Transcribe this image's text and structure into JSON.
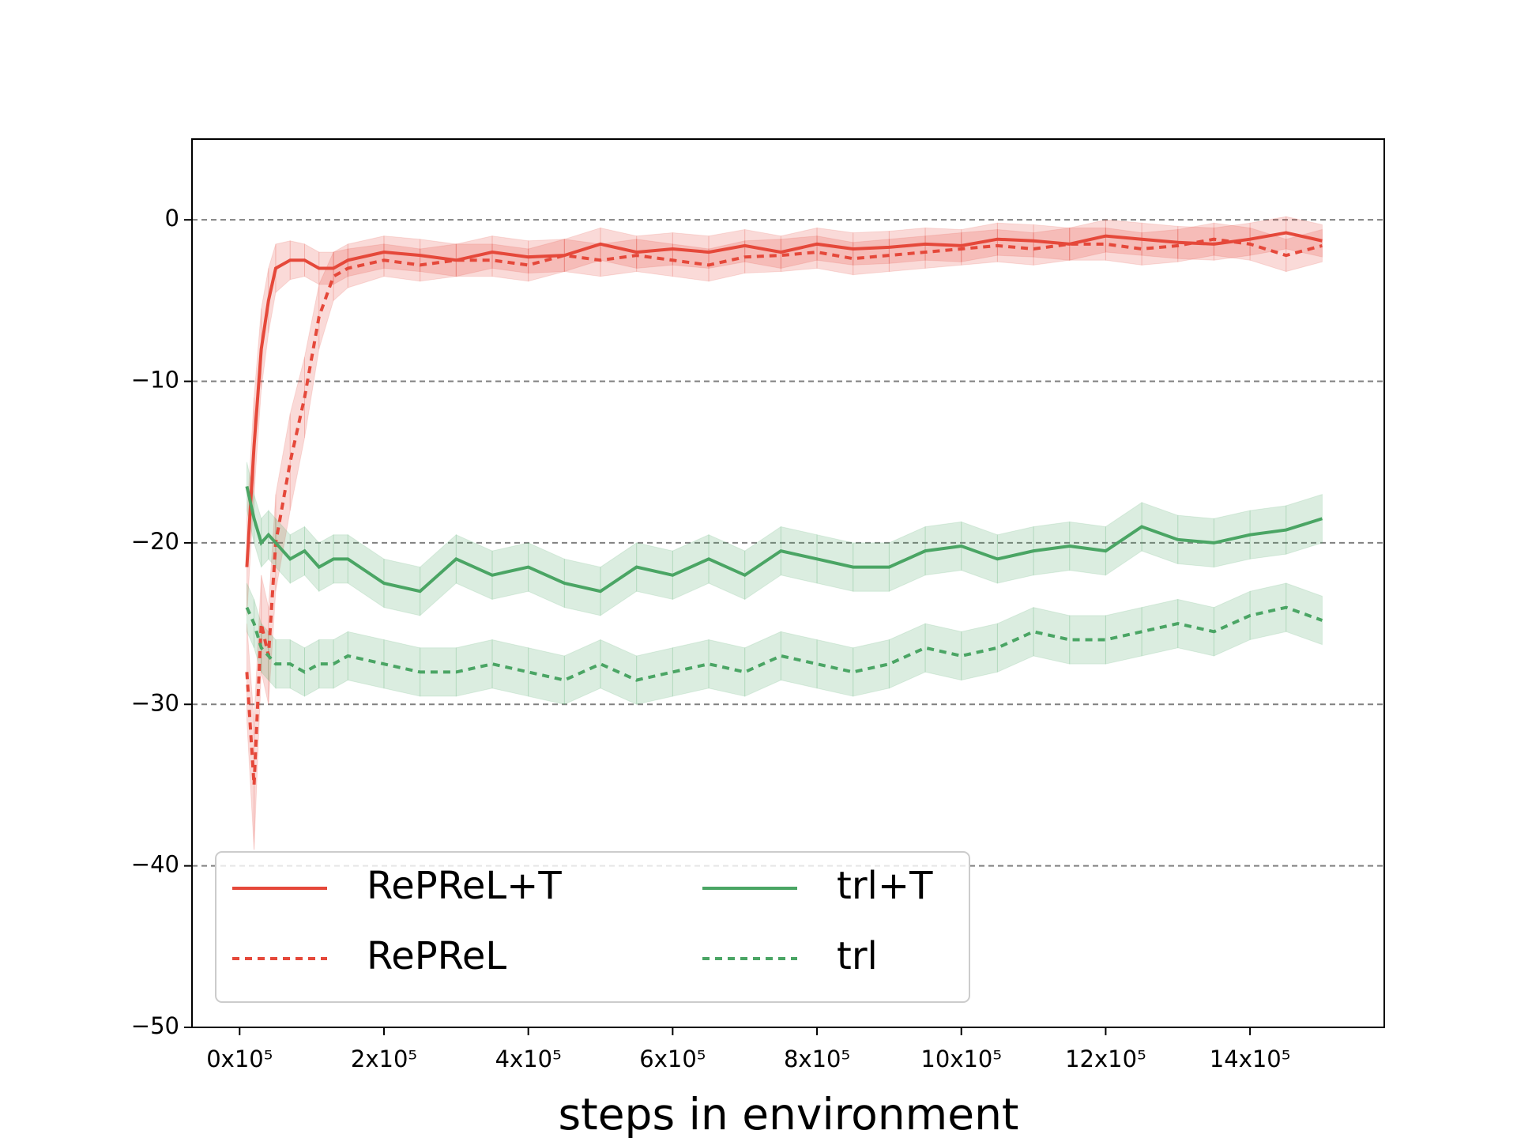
{
  "chart_data": {
    "type": "line",
    "x_label": "steps in environment",
    "x": [
      10000,
      20000,
      30000,
      40000,
      50000,
      70000,
      90000,
      110000,
      130000,
      150000,
      200000,
      250000,
      300000,
      350000,
      400000,
      450000,
      500000,
      550000,
      600000,
      650000,
      700000,
      750000,
      800000,
      850000,
      900000,
      950000,
      1000000,
      1050000,
      1100000,
      1150000,
      1200000,
      1250000,
      1300000,
      1350000,
      1400000,
      1450000,
      1500000
    ],
    "series": [
      {
        "name": "RePReL+T",
        "color": "#e5483a",
        "linestyle": "solid",
        "values": [
          -21.5,
          -14,
          -8,
          -5,
          -3,
          -2.5,
          -2.5,
          -3,
          -3,
          -2.5,
          -2,
          -2.2,
          -2.5,
          -2,
          -2.3,
          -2.2,
          -1.5,
          -2,
          -1.8,
          -2,
          -1.6,
          -2,
          -1.5,
          -1.8,
          -1.7,
          -1.5,
          -1.6,
          -1.2,
          -1.3,
          -1.5,
          -1,
          -1.2,
          -1.4,
          -1.5,
          -1.2,
          -0.8,
          -1.3
        ],
        "error": [
          3,
          3,
          2.5,
          2,
          1.5,
          1.2,
          1,
          1,
          1,
          1,
          1,
          1,
          1,
          1,
          1,
          1,
          1,
          1,
          1,
          1,
          1,
          1,
          1,
          1,
          1,
          1,
          1,
          1,
          1,
          1,
          1,
          1,
          1,
          1,
          1,
          1,
          1
        ]
      },
      {
        "name": "RePReL",
        "color": "#e5483a",
        "linestyle": "dotted",
        "values": [
          -28,
          -35,
          -25,
          -27,
          -20,
          -15,
          -11,
          -6,
          -3.5,
          -3,
          -2.5,
          -2.8,
          -2.5,
          -2.5,
          -2.8,
          -2.2,
          -2.5,
          -2.2,
          -2.5,
          -2.8,
          -2.3,
          -2.2,
          -2,
          -2.4,
          -2.2,
          -2,
          -1.8,
          -1.6,
          -1.8,
          -1.5,
          -1.5,
          -1.8,
          -1.6,
          -1.2,
          -1.5,
          -2.2,
          -1.6
        ],
        "error": [
          3,
          4,
          3,
          3,
          3,
          3,
          2.5,
          2,
          1.5,
          1.2,
          1,
          1,
          1,
          1,
          1,
          1,
          1,
          1,
          1,
          1,
          1,
          1,
          1,
          1,
          1,
          1,
          1,
          1,
          1,
          1,
          1,
          1,
          1,
          1,
          1,
          1,
          1
        ]
      },
      {
        "name": "trl+T",
        "color": "#4aa564",
        "linestyle": "solid",
        "values": [
          -16.5,
          -18.5,
          -20,
          -19.5,
          -20,
          -21,
          -20.5,
          -21.5,
          -21,
          -21,
          -22.5,
          -23,
          -21,
          -22,
          -21.5,
          -22.5,
          -23,
          -21.5,
          -22,
          -21,
          -22,
          -20.5,
          -21,
          -21.5,
          -21.5,
          -20.5,
          -20.2,
          -21,
          -20.5,
          -20.2,
          -20.5,
          -19,
          -19.8,
          -20,
          -19.5,
          -19.2,
          -18.5
        ],
        "error": [
          1.5,
          1.5,
          1.5,
          1.5,
          1.5,
          1.5,
          1.5,
          1.5,
          1.5,
          1.5,
          1.5,
          1.5,
          1.5,
          1.5,
          1.5,
          1.5,
          1.5,
          1.5,
          1.5,
          1.5,
          1.5,
          1.5,
          1.5,
          1.5,
          1.5,
          1.5,
          1.5,
          1.5,
          1.5,
          1.5,
          1.5,
          1.5,
          1.5,
          1.5,
          1.5,
          1.5,
          1.5
        ]
      },
      {
        "name": "trl",
        "color": "#4aa564",
        "linestyle": "dotted",
        "values": [
          -24,
          -25,
          -26.5,
          -27,
          -27.5,
          -27.5,
          -28,
          -27.5,
          -27.5,
          -27,
          -27.5,
          -28,
          -28,
          -27.5,
          -28,
          -28.5,
          -27.5,
          -28.5,
          -28,
          -27.5,
          -28,
          -27,
          -27.5,
          -28,
          -27.5,
          -26.5,
          -27,
          -26.5,
          -25.5,
          -26,
          -26,
          -25.5,
          -25,
          -25.5,
          -24.5,
          -24,
          -24.8
        ],
        "error": [
          1.5,
          1.5,
          1.5,
          1.5,
          1.5,
          1.5,
          1.5,
          1.5,
          1.5,
          1.5,
          1.5,
          1.5,
          1.5,
          1.5,
          1.5,
          1.5,
          1.5,
          1.5,
          1.5,
          1.5,
          1.5,
          1.5,
          1.5,
          1.5,
          1.5,
          1.5,
          1.5,
          1.5,
          1.5,
          1.5,
          1.5,
          1.5,
          1.5,
          1.5,
          1.5,
          1.5,
          1.5
        ]
      }
    ],
    "xlim": [
      -66000,
      1586000
    ],
    "ylim": [
      -50,
      5
    ],
    "xticks": [
      {
        "value": 0,
        "label": "0x10⁵"
      },
      {
        "value": 200000,
        "label": "2x10⁵"
      },
      {
        "value": 400000,
        "label": "4x10⁵"
      },
      {
        "value": 600000,
        "label": "6x10⁵"
      },
      {
        "value": 800000,
        "label": "8x10⁵"
      },
      {
        "value": 1000000,
        "label": "10x10⁵"
      },
      {
        "value": 1200000,
        "label": "12x10⁵"
      },
      {
        "value": 1400000,
        "label": "14x10⁵"
      }
    ],
    "yticks": [
      {
        "value": -50,
        "label": "−50"
      },
      {
        "value": -40,
        "label": "−40"
      },
      {
        "value": -30,
        "label": "−30"
      },
      {
        "value": -20,
        "label": "−20"
      },
      {
        "value": -10,
        "label": "−10"
      },
      0
    ],
    "grid": true,
    "legend": "lower left",
    "legend_columns": 2
  }
}
